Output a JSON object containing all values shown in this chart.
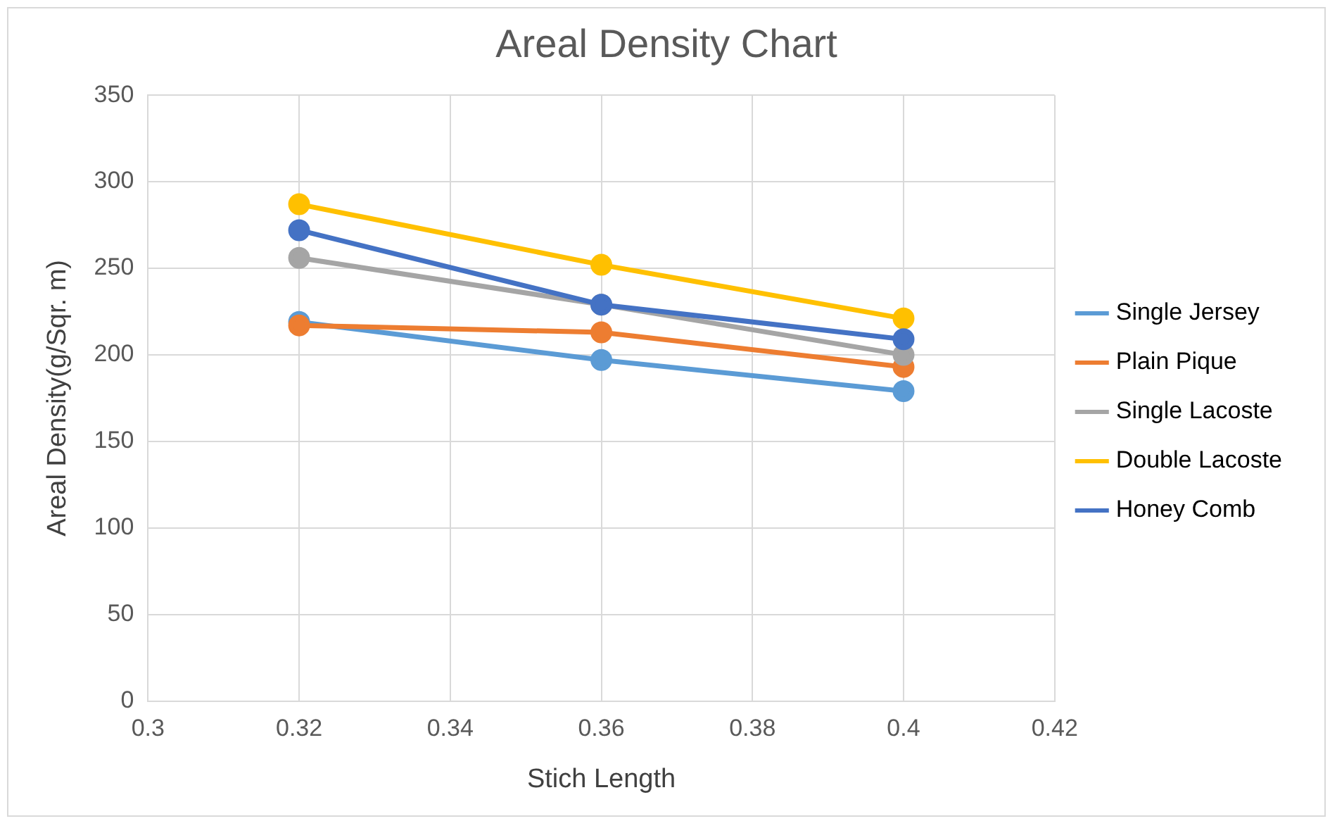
{
  "chart_data": {
    "type": "line",
    "title": "Areal Density Chart",
    "xlabel": "Stich Length",
    "ylabel": "Areal Density(g/Sqr. m)",
    "x": [
      0.32,
      0.36,
      0.4
    ],
    "series": [
      {
        "name": "Single Jersey",
        "color": "#5b9bd5",
        "values": [
          219,
          197,
          179
        ]
      },
      {
        "name": "Plain Pique",
        "color": "#ed7d31",
        "values": [
          217,
          213,
          193
        ]
      },
      {
        "name": "Single Lacoste",
        "color": "#a5a5a5",
        "values": [
          256,
          229,
          200
        ]
      },
      {
        "name": "Double Lacoste",
        "color": "#ffc000",
        "values": [
          287,
          252,
          221
        ]
      },
      {
        "name": "Honey Comb",
        "color": "#4472c4",
        "values": [
          272,
          229,
          209
        ]
      }
    ],
    "xlim": [
      0.3,
      0.42
    ],
    "xticks": [
      0.3,
      0.32,
      0.34,
      0.36,
      0.38,
      0.4,
      0.42
    ],
    "ylim": [
      0,
      350
    ],
    "yticks": [
      0,
      50,
      100,
      150,
      200,
      250,
      300,
      350
    ],
    "grid": true,
    "legend": "right",
    "marker": "circle",
    "line_style": "solid"
  }
}
